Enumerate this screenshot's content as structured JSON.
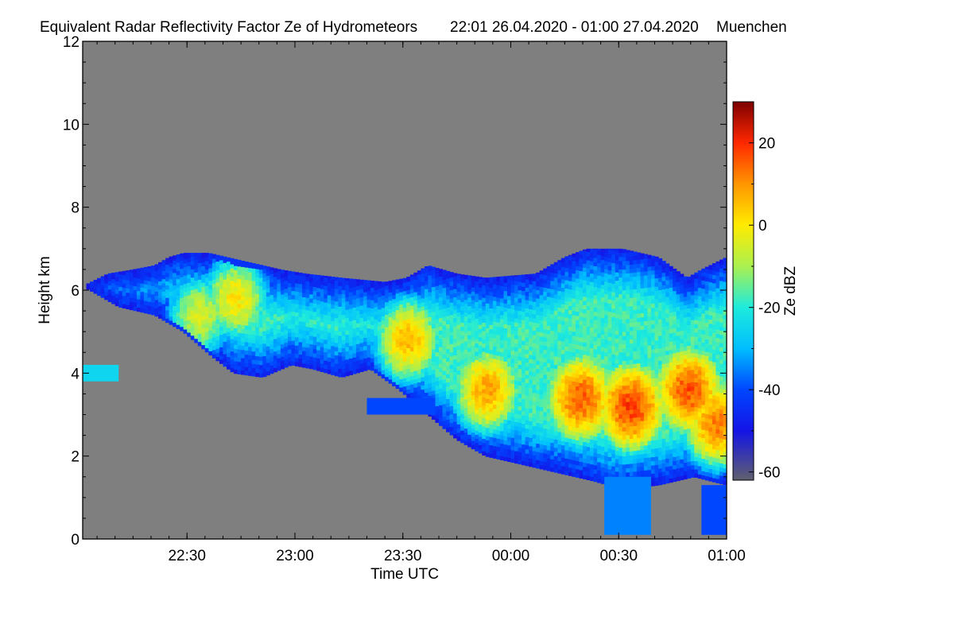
{
  "chart_data": {
    "type": "heatmap",
    "title": "Equivalent Radar Reflectivity Factor Ze of Hydrometeors",
    "time_range": "22:01 26.04.2020 - 01:00 27.04.2020",
    "location": "Muenchen",
    "xlabel": "Time UTC",
    "ylabel": "Height km",
    "x_tick_labels": [
      "22:30",
      "23:00",
      "23:30",
      "00:00",
      "00:30",
      "01:00"
    ],
    "x_range_minutes": [
      0,
      179
    ],
    "x_tick_minutes": [
      29,
      59,
      89,
      119,
      149,
      179
    ],
    "y_range": [
      0,
      12
    ],
    "y_ticks": [
      0,
      2,
      4,
      6,
      8,
      10,
      12
    ],
    "colorbar": {
      "label": "Ze dBZ",
      "range": [
        -62,
        30
      ],
      "ticks": [
        -60,
        -40,
        -20,
        0,
        20
      ]
    },
    "cloud_top_km": [
      [
        0,
        6.1
      ],
      [
        7,
        6.4
      ],
      [
        14,
        6.5
      ],
      [
        20,
        6.6
      ],
      [
        24,
        6.8
      ],
      [
        28,
        6.9
      ],
      [
        35,
        6.9
      ],
      [
        45,
        6.7
      ],
      [
        55,
        6.5
      ],
      [
        62,
        6.4
      ],
      [
        72,
        6.3
      ],
      [
        84,
        6.2
      ],
      [
        90,
        6.3
      ],
      [
        96,
        6.6
      ],
      [
        104,
        6.4
      ],
      [
        112,
        6.3
      ],
      [
        126,
        6.4
      ],
      [
        134,
        6.8
      ],
      [
        140,
        7.0
      ],
      [
        150,
        7.0
      ],
      [
        160,
        6.8
      ],
      [
        168,
        6.3
      ],
      [
        172,
        6.5
      ],
      [
        179,
        6.8
      ]
    ],
    "cloud_base_km": [
      [
        0,
        6.1
      ],
      [
        10,
        5.6
      ],
      [
        20,
        5.4
      ],
      [
        28,
        5.0
      ],
      [
        36,
        4.4
      ],
      [
        42,
        4.0
      ],
      [
        50,
        3.9
      ],
      [
        58,
        4.2
      ],
      [
        64,
        4.1
      ],
      [
        72,
        3.9
      ],
      [
        80,
        4.1
      ],
      [
        88,
        3.6
      ],
      [
        96,
        3.0
      ],
      [
        104,
        2.4
      ],
      [
        112,
        2.0
      ],
      [
        122,
        1.8
      ],
      [
        132,
        1.6
      ],
      [
        142,
        1.4
      ],
      [
        150,
        1.2
      ],
      [
        160,
        1.3
      ],
      [
        170,
        1.5
      ],
      [
        179,
        1.3
      ]
    ],
    "precip_shafts": [
      {
        "start_min": 145,
        "end_min": 158,
        "top_km": 1.5,
        "bottom_km": 0.1,
        "ze_dbz": -35
      },
      {
        "start_min": 172,
        "end_min": 179,
        "top_km": 1.3,
        "bottom_km": 0.1,
        "ze_dbz": -40
      }
    ],
    "cells": [
      {
        "center_min": 32,
        "height_km": 5.4,
        "ze_dbz": -5
      },
      {
        "center_min": 42,
        "height_km": 5.8,
        "ze_dbz": 0
      },
      {
        "center_min": 90,
        "height_km": 4.8,
        "ze_dbz": 5
      },
      {
        "center_min": 112,
        "height_km": 3.6,
        "ze_dbz": 8
      },
      {
        "center_min": 138,
        "height_km": 3.4,
        "ze_dbz": 15
      },
      {
        "center_min": 152,
        "height_km": 3.2,
        "ze_dbz": 18
      },
      {
        "center_min": 168,
        "height_km": 3.6,
        "ze_dbz": 16
      },
      {
        "center_min": 176,
        "height_km": 2.8,
        "ze_dbz": 12
      }
    ],
    "isolated_echoes": [
      {
        "start_min": 0,
        "end_min": 10,
        "top_km": 4.2,
        "bottom_km": 3.8,
        "ze_dbz": -25
      },
      {
        "start_min": 79,
        "end_min": 98,
        "top_km": 3.4,
        "bottom_km": 3.0,
        "ze_dbz": -40
      }
    ]
  }
}
